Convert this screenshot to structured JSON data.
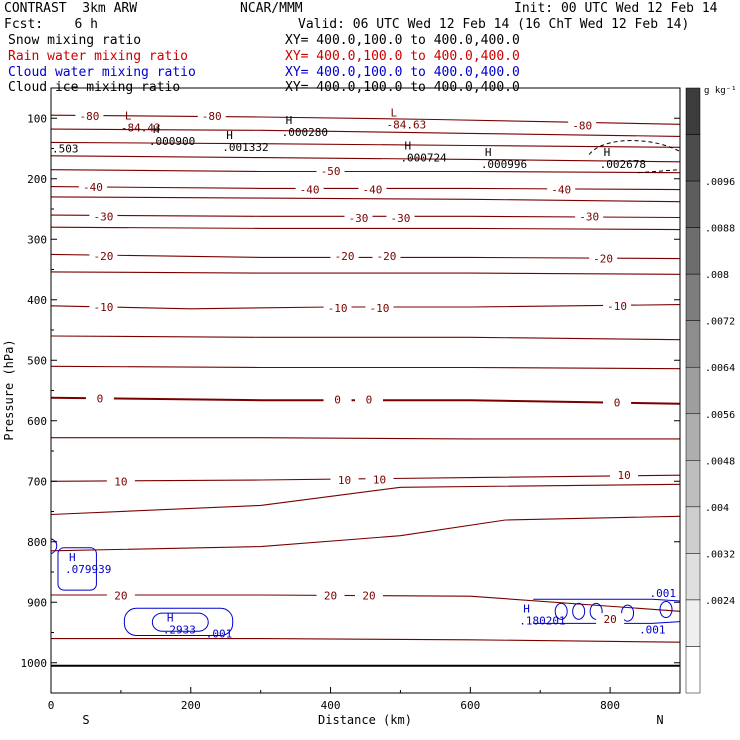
{
  "header": {
    "left_line1": "CONTRAST  3km ARW",
    "left_line2": "Fcst:    6 h",
    "center_line1": "NCAR/MMM",
    "init": "Init: 00 UTC Wed 12 Feb 14",
    "valid": "Valid: 06 UTC Wed 12 Feb 14 (16 ChT Wed 12 Feb 14)",
    "fields": [
      {
        "name": "Snow mixing ratio",
        "xy": "XY= 400.0,100.0 to 400.0,400.0",
        "color": "#000000"
      },
      {
        "name": "Rain water mixing ratio",
        "xy": "XY= 400.0,100.0 to 400.0,400.0",
        "color": "#cc0000"
      },
      {
        "name": "Cloud water mixing ratio",
        "xy": "XY= 400.0,100.0 to 400.0,400.0",
        "color": "#0000cc"
      },
      {
        "name": "Cloud ice mixing ratio",
        "xy": "XY= 400.0,100.0 to 400.0,400.0",
        "color": "#000000"
      }
    ]
  },
  "chart_data": {
    "type": "line",
    "xlabel": "Distance (km)",
    "ylabel": "Pressure (hPa)",
    "xlim": [
      0,
      900
    ],
    "ylim": [
      1050,
      50
    ],
    "x_ticks": [
      0,
      200,
      400,
      600,
      800
    ],
    "y_ticks": [
      100,
      200,
      300,
      400,
      500,
      600,
      700,
      800,
      900,
      1000
    ],
    "direction_labels": {
      "left": "S",
      "right": "N"
    },
    "colorbar": {
      "unit": "g kg⁻¹",
      "labels": [
        ".0096",
        ".0088",
        ".008",
        ".0072",
        ".0064",
        ".0056",
        ".0048",
        ".004",
        ".0032",
        ".0024"
      ]
    },
    "temperature_contours": [
      {
        "label": "-80",
        "points": [
          [
            0,
            95
          ],
          [
            300,
            98
          ],
          [
            550,
            102
          ],
          [
            900,
            110
          ]
        ]
      },
      {
        "label": "",
        "points": [
          [
            0,
            118
          ],
          [
            300,
            120
          ],
          [
            600,
            125
          ],
          [
            900,
            130
          ]
        ]
      },
      {
        "label": "",
        "points": [
          [
            0,
            140
          ],
          [
            300,
            142
          ],
          [
            600,
            145
          ],
          [
            900,
            148
          ]
        ]
      },
      {
        "label": "",
        "points": [
          [
            0,
            162
          ],
          [
            300,
            165
          ],
          [
            600,
            168
          ],
          [
            900,
            172
          ]
        ]
      },
      {
        "label": "-50",
        "points": [
          [
            0,
            185
          ],
          [
            300,
            188
          ],
          [
            600,
            188
          ],
          [
            900,
            190
          ]
        ]
      },
      {
        "label": "-40",
        "points": [
          [
            0,
            213
          ],
          [
            300,
            216
          ],
          [
            600,
            216
          ],
          [
            900,
            218
          ]
        ]
      },
      {
        "label": "",
        "points": [
          [
            0,
            230
          ],
          [
            300,
            232
          ],
          [
            600,
            234
          ],
          [
            900,
            238
          ]
        ]
      },
      {
        "label": "-30",
        "points": [
          [
            0,
            260
          ],
          [
            300,
            262
          ],
          [
            600,
            262
          ],
          [
            900,
            264
          ]
        ]
      },
      {
        "label": "",
        "points": [
          [
            0,
            280
          ],
          [
            300,
            282
          ],
          [
            600,
            282
          ],
          [
            900,
            284
          ]
        ]
      },
      {
        "label": "-20",
        "points": [
          [
            0,
            325
          ],
          [
            300,
            330
          ],
          [
            600,
            330
          ],
          [
            900,
            332
          ]
        ]
      },
      {
        "label": "",
        "points": [
          [
            0,
            354
          ],
          [
            300,
            356
          ],
          [
            600,
            356
          ],
          [
            900,
            358
          ]
        ]
      },
      {
        "label": "-10",
        "points": [
          [
            0,
            410
          ],
          [
            200,
            415
          ],
          [
            400,
            412
          ],
          [
            600,
            412
          ],
          [
            900,
            408
          ]
        ]
      },
      {
        "label": "",
        "points": [
          [
            0,
            460
          ],
          [
            300,
            462
          ],
          [
            600,
            462
          ],
          [
            900,
            466
          ]
        ]
      },
      {
        "label": "",
        "points": [
          [
            0,
            510
          ],
          [
            300,
            512
          ],
          [
            600,
            512
          ],
          [
            900,
            514
          ]
        ]
      },
      {
        "label": "0",
        "points": [
          [
            0,
            562
          ],
          [
            300,
            566
          ],
          [
            600,
            566
          ],
          [
            900,
            572
          ]
        ]
      },
      {
        "label": "",
        "points": [
          [
            0,
            628
          ],
          [
            300,
            628
          ],
          [
            600,
            630
          ],
          [
            900,
            630
          ]
        ]
      },
      {
        "label": "10",
        "points": [
          [
            0,
            700
          ],
          [
            300,
            698
          ],
          [
            600,
            694
          ],
          [
            900,
            690
          ]
        ]
      },
      {
        "label": "",
        "points": [
          [
            0,
            755
          ],
          [
            300,
            740
          ],
          [
            500,
            710
          ],
          [
            900,
            705
          ]
        ]
      },
      {
        "label": "",
        "points": [
          [
            0,
            815
          ],
          [
            300,
            808
          ],
          [
            500,
            790
          ],
          [
            650,
            764
          ],
          [
            900,
            758
          ]
        ]
      },
      {
        "label": "20",
        "points": [
          [
            0,
            888
          ],
          [
            300,
            888
          ],
          [
            600,
            890
          ],
          [
            900,
            915
          ]
        ]
      },
      {
        "label": "",
        "points": [
          [
            0,
            960
          ],
          [
            300,
            960
          ],
          [
            600,
            962
          ],
          [
            900,
            966
          ]
        ]
      }
    ],
    "contour_labels": [
      {
        "text": "-80",
        "x": 55,
        "y": 96
      },
      {
        "text": "-80",
        "x": 230,
        "y": 96
      },
      {
        "text": "-80",
        "x": 760,
        "y": 112
      },
      {
        "text": "-50",
        "x": 400,
        "y": 187
      },
      {
        "text": "-40",
        "x": 60,
        "y": 214
      },
      {
        "text": "-40",
        "x": 370,
        "y": 218
      },
      {
        "text": "-40",
        "x": 460,
        "y": 218
      },
      {
        "text": "-40",
        "x": 730,
        "y": 218
      },
      {
        "text": "-30",
        "x": 75,
        "y": 262
      },
      {
        "text": "-30",
        "x": 440,
        "y": 265
      },
      {
        "text": "-30",
        "x": 500,
        "y": 265
      },
      {
        "text": "-30",
        "x": 770,
        "y": 262
      },
      {
        "text": "-20",
        "x": 75,
        "y": 328
      },
      {
        "text": "-20",
        "x": 420,
        "y": 328
      },
      {
        "text": "-20",
        "x": 480,
        "y": 328
      },
      {
        "text": "-20",
        "x": 790,
        "y": 332
      },
      {
        "text": "-10",
        "x": 75,
        "y": 412
      },
      {
        "text": "-10",
        "x": 410,
        "y": 414
      },
      {
        "text": "-10",
        "x": 470,
        "y": 414
      },
      {
        "text": "-10",
        "x": 810,
        "y": 410
      },
      {
        "text": "0",
        "x": 70,
        "y": 563
      },
      {
        "text": "0",
        "x": 410,
        "y": 565
      },
      {
        "text": "0",
        "x": 455,
        "y": 565
      },
      {
        "text": "0",
        "x": 810,
        "y": 570
      },
      {
        "text": "10",
        "x": 100,
        "y": 700
      },
      {
        "text": "10",
        "x": 420,
        "y": 698
      },
      {
        "text": "10",
        "x": 470,
        "y": 697
      },
      {
        "text": "10",
        "x": 820,
        "y": 690
      },
      {
        "text": "20",
        "x": 100,
        "y": 889
      },
      {
        "text": "20",
        "x": 400,
        "y": 889
      },
      {
        "text": "20",
        "x": 455,
        "y": 889
      },
      {
        "text": "20",
        "x": 800,
        "y": 928
      }
    ],
    "extrema": [
      {
        "mark": "L",
        "value": "-84.43",
        "x": 100,
        "y": 105,
        "color": "#7a0000"
      },
      {
        "mark": "L",
        "value": "-84.63",
        "x": 480,
        "y": 100,
        "color": "#7a0000"
      },
      {
        "mark": "H",
        "value": ".000900",
        "x": 140,
        "y": 128,
        "color": "#000000"
      },
      {
        "mark": "H",
        "value": ".001332",
        "x": 245,
        "y": 138,
        "color": "#000000"
      },
      {
        "mark": "H",
        "value": ".000280",
        "x": 330,
        "y": 113,
        "color": "#000000"
      },
      {
        "mark": "H",
        "value": ".000724",
        "x": 500,
        "y": 155,
        "color": "#000000"
      },
      {
        "mark": "H",
        "value": ".000996",
        "x": 615,
        "y": 166,
        "color": "#000000"
      },
      {
        "mark": "H",
        "value": ".002678",
        "x": 785,
        "y": 166,
        "color": "#000000"
      },
      {
        "mark": "H",
        "value": ".079939",
        "x": 20,
        "y": 835,
        "color": "#0000cc"
      },
      {
        "mark": "H",
        "value": ".2933",
        "x": 160,
        "y": 935,
        "color": "#0000cc"
      },
      {
        "mark": "H",
        "value": ".180201",
        "x": 670,
        "y": 920,
        "color": "#0000cc"
      }
    ],
    "edge_labels": [
      {
        "text": ".503",
        "x": 0,
        "y": 150,
        "color": "#000000"
      },
      {
        "text": ".001",
        "x": 220,
        "y": 952,
        "color": "#0000cc"
      },
      {
        "text": ".001",
        "x": 855,
        "y": 885,
        "color": "#0000cc"
      },
      {
        "text": ".001",
        "x": 840,
        "y": 945,
        "color": "#0000cc"
      }
    ]
  }
}
